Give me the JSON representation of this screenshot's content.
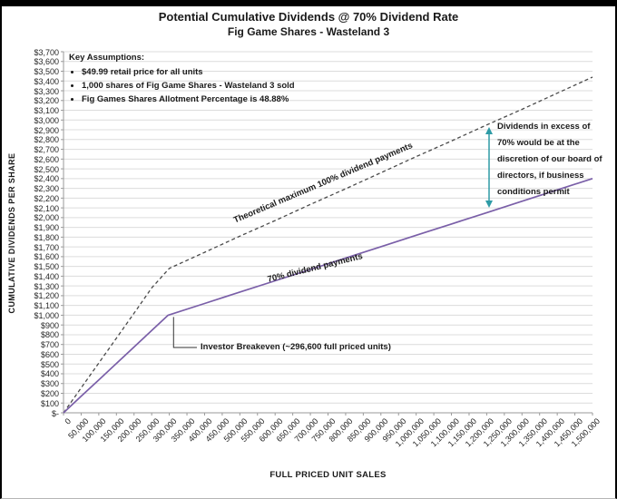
{
  "chart_data": {
    "type": "line",
    "title": "Potential Cumulative Dividends @ 70% Dividend Rate",
    "subtitle": "Fig Game Shares - Wasteland 3",
    "xlabel": "FULL PRICED UNIT SALES",
    "ylabel": "CUMULATIVE DIVIDENDS PER SHARE",
    "xlim": [
      0,
      1500000
    ],
    "ylim": [
      0,
      3700
    ],
    "x_tick_step": 50000,
    "y_tick_step": 100,
    "grid": "horizontal",
    "legend": "none",
    "x_tick_labels": [
      "0",
      "50,000",
      "100,000",
      "150,000",
      "200,000",
      "250,000",
      "300,000",
      "350,000",
      "400,000",
      "450,000",
      "500,000",
      "550,000",
      "600,000",
      "650,000",
      "700,000",
      "750,000",
      "800,000",
      "850,000",
      "900,000",
      "950,000",
      "1,000,000",
      "1,050,000",
      "1,100,000",
      "1,150,000",
      "1,200,000",
      "1,250,000",
      "1,300,000",
      "1,350,000",
      "1,400,000",
      "1,450,000",
      "1,500,000"
    ],
    "y_tick_labels": [
      "$-",
      "$100",
      "$200",
      "$300",
      "$400",
      "$500",
      "$600",
      "$700",
      "$800",
      "$900",
      "$1,000",
      "$1,100",
      "$1,200",
      "$1,300",
      "$1,400",
      "$1,500",
      "$1,600",
      "$1,700",
      "$1,800",
      "$1,900",
      "$2,000",
      "$2,100",
      "$2,200",
      "$2,300",
      "$2,400",
      "$2,500",
      "$2,600",
      "$2,700",
      "$2,800",
      "$2,900",
      "$3,000",
      "$3,100",
      "$3,200",
      "$3,300",
      "$3,400",
      "$3,500",
      "$3,600",
      "$3,700"
    ],
    "series": [
      {
        "name": "Theoretical maximum 100% dividend payments",
        "style": "dashed",
        "color": "#4a4a4a",
        "points": [
          [
            0,
            0
          ],
          [
            50000,
            255
          ],
          [
            100000,
            510
          ],
          [
            150000,
            765
          ],
          [
            200000,
            1020
          ],
          [
            250000,
            1280
          ],
          [
            300000,
            1480
          ],
          [
            400000,
            1645
          ],
          [
            500000,
            1810
          ],
          [
            600000,
            1970
          ],
          [
            700000,
            2135
          ],
          [
            800000,
            2295
          ],
          [
            900000,
            2460
          ],
          [
            1000000,
            2625
          ],
          [
            1100000,
            2785
          ],
          [
            1200000,
            2950
          ],
          [
            1300000,
            3110
          ],
          [
            1400000,
            3275
          ],
          [
            1500000,
            3440
          ]
        ]
      },
      {
        "name": "70% dividend payments",
        "style": "solid",
        "color": "#7A5FA8",
        "points": [
          [
            0,
            0
          ],
          [
            50000,
            169
          ],
          [
            100000,
            337
          ],
          [
            150000,
            506
          ],
          [
            200000,
            674
          ],
          [
            250000,
            843
          ],
          [
            296600,
            1000
          ],
          [
            400000,
            1120
          ],
          [
            500000,
            1237
          ],
          [
            600000,
            1353
          ],
          [
            700000,
            1469
          ],
          [
            800000,
            1586
          ],
          [
            900000,
            1702
          ],
          [
            1000000,
            1819
          ],
          [
            1100000,
            1935
          ],
          [
            1200000,
            2051
          ],
          [
            1300000,
            2168
          ],
          [
            1400000,
            2284
          ],
          [
            1500000,
            2400
          ]
        ]
      }
    ],
    "annotations": {
      "breakeven": "Investor Breakeven (~296,600 full priced units)",
      "breakeven_point": [
        296600,
        1000
      ],
      "board_note": "Dividends in excess of 70% would be at the discretion of our board of directors, if business conditions permit"
    }
  },
  "assumptions": {
    "heading": "Key Assumptions:",
    "items": [
      "$49.99 retail price for all units",
      "1,000 shares of Fig Game Shares - Wasteland 3 sold",
      "Fig Games Shares Allotment Percentage is 48.88%"
    ]
  },
  "colors": {
    "line_70": "#7A5FA8",
    "line_100": "#4a4a4a",
    "range_arrow": "#2E9BA6",
    "gridline": "#dcdcdc",
    "axis": "#9a9a9a",
    "leader": "#333333",
    "frame": "#000000"
  }
}
